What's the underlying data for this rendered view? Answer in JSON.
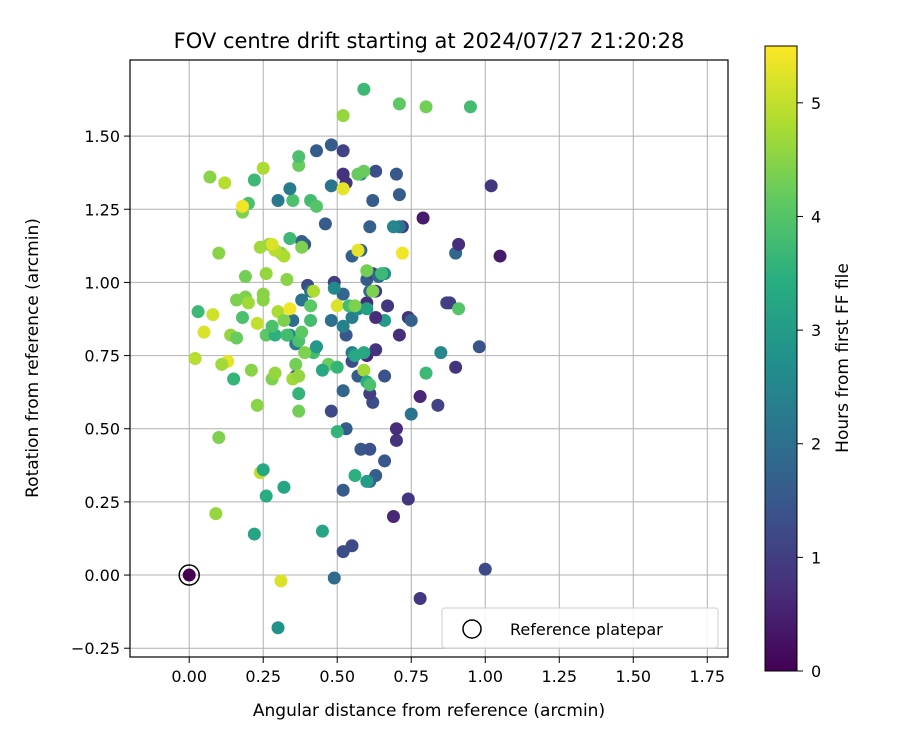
{
  "chart_data": {
    "type": "scatter",
    "title": "FOV centre drift starting at 2024/07/27 21:20:28",
    "xlabel": "Angular distance from reference (arcmin)",
    "ylabel": "Rotation from reference (arcmin)",
    "xlim": [
      -0.2,
      1.82
    ],
    "ylim": [
      -0.28,
      1.76
    ],
    "x_ticks": [
      0.0,
      0.25,
      0.5,
      0.75,
      1.0,
      1.25,
      1.5,
      1.75
    ],
    "x_tick_labels": [
      "0.00",
      "0.25",
      "0.50",
      "0.75",
      "1.00",
      "1.25",
      "1.50",
      "1.75"
    ],
    "y_ticks": [
      -0.25,
      0.0,
      0.25,
      0.5,
      0.75,
      1.0,
      1.25,
      1.5
    ],
    "y_tick_labels": [
      "−0.25",
      "0.00",
      "0.25",
      "0.50",
      "0.75",
      "1.00",
      "1.25",
      "1.50"
    ],
    "grid": true,
    "legend": {
      "position": "lower-right",
      "entries": [
        "Reference platepar"
      ]
    },
    "reference_point": {
      "x": 0.0,
      "y": 0.0
    },
    "colorbar": {
      "label": "Hours from first FF file",
      "colormap": "viridis",
      "range": [
        0,
        5.5
      ],
      "ticks": [
        0,
        1,
        2,
        3,
        4,
        5
      ],
      "tick_labels": [
        "0",
        "1",
        "2",
        "3",
        "4",
        "5"
      ]
    },
    "series": [
      {
        "points": [
          [
            0.78,
            -0.08,
            0.9
          ],
          [
            1.0,
            0.02,
            1.2
          ],
          [
            0.55,
            0.1,
            1.2
          ],
          [
            0.52,
            0.08,
            1.3
          ],
          [
            0.74,
            0.26,
            0.9
          ],
          [
            0.69,
            0.2,
            0.6
          ],
          [
            0.63,
            0.34,
            1.6
          ],
          [
            0.66,
            0.39,
            1.5
          ],
          [
            0.52,
            0.29,
            1.6
          ],
          [
            0.61,
            0.32,
            1.8
          ],
          [
            0.58,
            0.43,
            1.5
          ],
          [
            0.61,
            0.43,
            1.4
          ],
          [
            0.7,
            0.46,
            0.8
          ],
          [
            0.7,
            0.5,
            0.7
          ],
          [
            0.48,
            0.56,
            1.2
          ],
          [
            0.53,
            0.5,
            1.6
          ],
          [
            0.62,
            0.59,
            1.3
          ],
          [
            0.61,
            0.62,
            1.0
          ],
          [
            0.66,
            0.68,
            1.4
          ],
          [
            0.57,
            0.68,
            1.6
          ],
          [
            0.55,
            0.73,
            1.3
          ],
          [
            0.6,
            0.75,
            0.6
          ],
          [
            0.63,
            0.77,
            0.8
          ],
          [
            0.53,
            0.82,
            1.5
          ],
          [
            0.78,
            0.61,
            0.6
          ],
          [
            0.75,
            0.55,
            2.1
          ],
          [
            0.84,
            0.58,
            1.1
          ],
          [
            0.85,
            0.76,
            2.5
          ],
          [
            0.9,
            0.71,
            0.8
          ],
          [
            0.71,
            0.82,
            0.7
          ],
          [
            0.74,
            0.88,
            0.8
          ],
          [
            0.75,
            0.87,
            1.7
          ],
          [
            0.66,
            0.87,
            3.0
          ],
          [
            0.67,
            0.92,
            0.9
          ],
          [
            0.63,
            0.88,
            0.7
          ],
          [
            0.6,
            0.93,
            0.7
          ],
          [
            0.61,
            0.97,
            1.8
          ],
          [
            0.63,
            0.97,
            0.9
          ],
          [
            0.6,
            1.01,
            1.6
          ],
          [
            0.62,
            1.03,
            1.2
          ],
          [
            0.64,
            1.02,
            1.9
          ],
          [
            0.66,
            1.03,
            2.6
          ],
          [
            0.55,
            1.09,
            1.7
          ],
          [
            0.58,
            1.11,
            1.8
          ],
          [
            0.49,
            1.0,
            1.0
          ],
          [
            0.52,
            0.96,
            1.8
          ],
          [
            0.49,
            0.98,
            2.6
          ],
          [
            0.48,
            0.87,
            2.0
          ],
          [
            0.52,
            0.85,
            2.4
          ],
          [
            0.55,
            0.88,
            2.3
          ],
          [
            0.57,
            0.91,
            2.6
          ],
          [
            0.6,
            0.91,
            3.1
          ],
          [
            0.87,
            0.93,
            1.1
          ],
          [
            0.88,
            0.93,
            1.0
          ],
          [
            0.9,
            1.1,
            1.8
          ],
          [
            0.91,
            1.13,
            0.7
          ],
          [
            0.98,
            0.78,
            1.4
          ],
          [
            1.02,
            1.33,
            0.9
          ],
          [
            1.05,
            1.09,
            0.4
          ],
          [
            0.79,
            1.22,
            0.4
          ],
          [
            0.72,
            1.19,
            0.9
          ],
          [
            0.71,
            1.19,
            2.1
          ],
          [
            0.69,
            1.19,
            2.5
          ],
          [
            0.61,
            1.19,
            1.7
          ],
          [
            0.71,
            1.3,
            1.6
          ],
          [
            0.7,
            1.37,
            1.5
          ],
          [
            0.63,
            1.38,
            1.3
          ],
          [
            0.58,
            1.37,
            2.5
          ],
          [
            0.62,
            1.28,
            1.6
          ],
          [
            0.53,
            1.34,
            0.9
          ],
          [
            0.52,
            1.37,
            0.8
          ],
          [
            0.52,
            1.45,
            1.1
          ],
          [
            0.48,
            1.47,
            1.6
          ],
          [
            0.43,
            1.45,
            1.6
          ],
          [
            0.48,
            1.33,
            2.1
          ],
          [
            0.46,
            1.2,
            1.6
          ],
          [
            0.39,
            1.13,
            1.4
          ],
          [
            0.38,
            1.14,
            1.7
          ],
          [
            0.34,
            1.15,
            3.7
          ],
          [
            0.4,
            0.99,
            1.2
          ],
          [
            0.41,
            0.97,
            2.1
          ],
          [
            0.38,
            0.94,
            2.1
          ],
          [
            0.35,
            0.87,
            2.0
          ],
          [
            0.36,
            0.79,
            2.2
          ],
          [
            0.34,
            0.82,
            2.6
          ],
          [
            0.36,
            0.68,
            1.5
          ],
          [
            0.42,
            0.76,
            3.8
          ],
          [
            0.43,
            0.78,
            2.9
          ],
          [
            0.47,
            0.72,
            4.2
          ],
          [
            0.5,
            0.71,
            3.6
          ],
          [
            0.45,
            0.7,
            3.3
          ],
          [
            0.52,
            0.63,
            1.8
          ],
          [
            0.59,
            0.7,
            4.7
          ],
          [
            0.6,
            0.66,
            3.4
          ],
          [
            0.61,
            0.65,
            3.9
          ],
          [
            0.59,
            0.76,
            3.3
          ],
          [
            0.55,
            0.76,
            2.4
          ],
          [
            0.56,
            0.75,
            3.3
          ],
          [
            0.5,
            0.49,
            3.6
          ],
          [
            0.56,
            0.34,
            3.5
          ],
          [
            0.6,
            0.32,
            3.0
          ],
          [
            0.45,
            0.15,
            3.2
          ],
          [
            0.49,
            -0.01,
            1.9
          ],
          [
            0.3,
            -0.18,
            2.8
          ],
          [
            0.31,
            -0.02,
            5.2
          ],
          [
            0.24,
            0.35,
            5.0
          ],
          [
            0.25,
            0.36,
            3.3
          ],
          [
            0.26,
            0.27,
            3.4
          ],
          [
            0.32,
            0.3,
            3.2
          ],
          [
            0.22,
            0.14,
            3.2
          ],
          [
            0.09,
            0.21,
            4.6
          ],
          [
            0.1,
            0.47,
            4.4
          ],
          [
            0.13,
            0.73,
            5.3
          ],
          [
            0.08,
            0.89,
            5.1
          ],
          [
            0.05,
            0.83,
            5.2
          ],
          [
            0.02,
            0.74,
            4.9
          ],
          [
            0.03,
            0.9,
            3.7
          ],
          [
            0.11,
            0.72,
            4.7
          ],
          [
            0.14,
            0.82,
            4.6
          ],
          [
            0.15,
            0.67,
            3.6
          ],
          [
            0.16,
            0.81,
            4.2
          ],
          [
            0.18,
            0.88,
            3.9
          ],
          [
            0.16,
            0.94,
            4.4
          ],
          [
            0.19,
            0.95,
            4.4
          ],
          [
            0.2,
            0.93,
            4.7
          ],
          [
            0.19,
            1.02,
            4.3
          ],
          [
            0.21,
            0.7,
            4.5
          ],
          [
            0.23,
            0.58,
            4.5
          ],
          [
            0.23,
            0.86,
            5.0
          ],
          [
            0.25,
            0.94,
            4.5
          ],
          [
            0.25,
            0.96,
            4.5
          ],
          [
            0.26,
            1.03,
            4.6
          ],
          [
            0.26,
            0.82,
            4.1
          ],
          [
            0.28,
            0.67,
            4.4
          ],
          [
            0.29,
            0.69,
            4.6
          ],
          [
            0.29,
            0.82,
            3.5
          ],
          [
            0.28,
            0.85,
            3.9
          ],
          [
            0.3,
            0.9,
            4.8
          ],
          [
            0.32,
            0.87,
            4.4
          ],
          [
            0.33,
            0.82,
            3.8
          ],
          [
            0.34,
            0.91,
            5.4
          ],
          [
            0.35,
            0.67,
            4.7
          ],
          [
            0.36,
            0.72,
            4.3
          ],
          [
            0.37,
            0.68,
            4.6
          ],
          [
            0.37,
            0.56,
            4.3
          ],
          [
            0.37,
            0.62,
            3.6
          ],
          [
            0.37,
            0.8,
            3.9
          ],
          [
            0.38,
            0.83,
            4.1
          ],
          [
            0.39,
            0.76,
            4.4
          ],
          [
            0.41,
            0.87,
            3.8
          ],
          [
            0.41,
            0.92,
            4.1
          ],
          [
            0.42,
            0.97,
            4.8
          ],
          [
            0.38,
            1.12,
            4.4
          ],
          [
            0.33,
            1.01,
            4.5
          ],
          [
            0.31,
            1.1,
            4.5
          ],
          [
            0.32,
            1.09,
            4.8
          ],
          [
            0.29,
            1.11,
            4.9
          ],
          [
            0.27,
            1.13,
            4.6
          ],
          [
            0.28,
            1.13,
            5.2
          ],
          [
            0.24,
            1.12,
            4.7
          ],
          [
            0.1,
            1.1,
            4.5
          ],
          [
            0.3,
            1.28,
            2.2
          ],
          [
            0.35,
            1.28,
            3.9
          ],
          [
            0.34,
            1.32,
            2.3
          ],
          [
            0.41,
            1.28,
            3.8
          ],
          [
            0.43,
            1.26,
            4.0
          ],
          [
            0.2,
            1.27,
            3.9
          ],
          [
            0.18,
            1.24,
            4.4
          ],
          [
            0.18,
            1.26,
            5.4
          ],
          [
            0.22,
            1.35,
            3.7
          ],
          [
            0.25,
            1.39,
            4.8
          ],
          [
            0.07,
            1.36,
            4.5
          ],
          [
            0.12,
            1.34,
            4.9
          ],
          [
            0.37,
            1.4,
            4.2
          ],
          [
            0.37,
            1.43,
            3.9
          ],
          [
            0.52,
            1.32,
            5.3
          ],
          [
            0.57,
            1.37,
            4.2
          ],
          [
            0.59,
            1.38,
            4.2
          ],
          [
            0.52,
            1.57,
            4.6
          ],
          [
            0.59,
            1.66,
            3.7
          ],
          [
            0.71,
            1.61,
            4.1
          ],
          [
            0.8,
            1.6,
            4.3
          ],
          [
            0.95,
            1.6,
            3.8
          ],
          [
            0.91,
            0.91,
            4.0
          ],
          [
            0.8,
            0.69,
            3.7
          ],
          [
            0.57,
            1.11,
            5.3
          ],
          [
            0.72,
            1.1,
            5.4
          ],
          [
            0.5,
            0.92,
            5.2
          ],
          [
            0.54,
            0.92,
            3.8
          ],
          [
            0.56,
            0.92,
            4.4
          ],
          [
            0.6,
            1.04,
            4.3
          ],
          [
            0.65,
            1.03,
            3.7
          ],
          [
            0.62,
            0.97,
            4.4
          ]
        ]
      }
    ]
  }
}
